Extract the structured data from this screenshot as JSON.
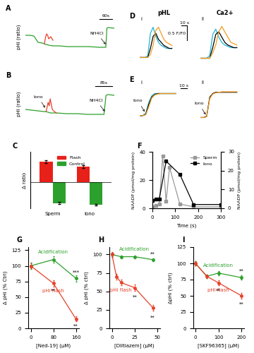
{
  "chart_data": [
    {
      "type": "line",
      "title": "A",
      "ylabel": "pHi (ratio)",
      "tick_labels": false,
      "xlim": [
        0,
        420
      ],
      "ylim": [
        0.6,
        1.25
      ],
      "series": [
        {
          "color": "#2ca02c",
          "x": [
            0,
            20,
            40,
            60,
            80,
            90,
            95,
            100,
            110,
            130,
            160,
            200,
            250,
            300,
            350,
            380,
            385,
            390,
            420
          ],
          "values": [
            0.95,
            0.95,
            0.94,
            0.85,
            0.84,
            0.83,
            0.82,
            0.82,
            0.81,
            0.8,
            0.8,
            0.79,
            0.79,
            0.79,
            0.78,
            0.78,
            1.05,
            1.06,
            1.05
          ]
        },
        {
          "color": "#e8402a",
          "x": [
            90,
            95,
            100,
            105,
            110,
            120,
            130
          ],
          "values": [
            0.83,
            0.92,
            0.97,
            0.95,
            0.9,
            0.93,
            0.88
          ]
        }
      ],
      "annotations": [
        {
          "text": "NH4Cl",
          "x": 385,
          "y": 0.8,
          "arrow": true
        }
      ],
      "scale_bar": {
        "x": 60,
        "x_label": "60s"
      }
    },
    {
      "type": "line",
      "title": "B",
      "ylabel": "pHi (ratio)",
      "tick_labels": false,
      "xlim": [
        0,
        430
      ],
      "ylim": [
        0.6,
        1.25
      ],
      "series": [
        {
          "color": "#2ca02c",
          "x": [
            0,
            30,
            60,
            90,
            100,
            110,
            120,
            150,
            200,
            250,
            300,
            350,
            380,
            390,
            400,
            430
          ],
          "values": [
            0.85,
            0.84,
            0.83,
            0.82,
            0.82,
            0.81,
            0.8,
            0.8,
            0.79,
            0.79,
            0.78,
            0.78,
            0.78,
            1.05,
            1.06,
            1.05
          ]
        },
        {
          "color": "#e8402a",
          "x": [
            100,
            110,
            115,
            120,
            130,
            140,
            150
          ],
          "values": [
            0.82,
            0.95,
            0.9,
            1.0,
            0.85,
            0.82,
            0.8
          ]
        }
      ],
      "annotations": [
        {
          "text": "Iono",
          "x": 100,
          "y": 0.85,
          "arrow": true
        },
        {
          "text": "NH4Cl",
          "x": 390,
          "y": 0.8,
          "arrow": true
        }
      ],
      "scale_bar": {
        "x": 85,
        "x_label": "85s"
      }
    },
    {
      "type": "line",
      "title": "D",
      "subtitle": "pHL",
      "tick_labels": false,
      "xlim": [
        0,
        90
      ],
      "ylim": [
        0.8,
        2.2
      ],
      "series": [
        {
          "color": "#1fb4d8",
          "x": [
            0,
            5,
            10,
            15,
            20,
            25,
            30,
            35,
            40,
            45,
            50,
            55,
            60
          ],
          "values": [
            1.0,
            1.0,
            1.0,
            1.05,
            1.8,
            2.0,
            1.7,
            1.5,
            1.4,
            1.35,
            1.3,
            1.3,
            1.3
          ]
        },
        {
          "color": "#000000",
          "x": [
            0,
            5,
            10,
            15,
            20,
            25,
            30,
            35,
            40,
            45,
            50,
            55,
            60
          ],
          "values": [
            1.0,
            1.0,
            1.0,
            1.0,
            1.3,
            1.7,
            1.8,
            1.6,
            1.5,
            1.4,
            1.35,
            1.3,
            1.3
          ]
        },
        {
          "color": "#f39c1f",
          "x": [
            0,
            5,
            10,
            15,
            20,
            25,
            30,
            35,
            40,
            45,
            50,
            55,
            60
          ],
          "values": [
            1.0,
            1.0,
            1.0,
            1.0,
            1.1,
            1.4,
            1.9,
            2.0,
            1.8,
            1.6,
            1.5,
            1.45,
            1.4
          ]
        }
      ],
      "annotations": [
        {
          "text": "i"
        }
      ],
      "scale_bar": {
        "x": 10,
        "x_label": "10 s",
        "y": 0.5,
        "y_label": "0.5 F/F0"
      }
    },
    {
      "type": "line",
      "subtitle": "Ca2+",
      "tick_labels": false,
      "xlim": [
        0,
        80
      ],
      "ylim": [
        0.8,
        2.4
      ],
      "series": [
        {
          "color": "#1fb4d8",
          "x": [
            0,
            5,
            10,
            15,
            20,
            25,
            30,
            35,
            40,
            45,
            50,
            55,
            60
          ],
          "values": [
            1.0,
            1.0,
            1.0,
            1.1,
            1.9,
            2.1,
            1.8,
            1.6,
            1.5,
            1.45,
            1.4,
            1.4,
            1.4
          ]
        },
        {
          "color": "#000000",
          "x": [
            0,
            5,
            10,
            15,
            20,
            25,
            30,
            35,
            40,
            45,
            50,
            55,
            60
          ],
          "values": [
            1.0,
            1.0,
            1.0,
            1.0,
            1.4,
            1.9,
            2.0,
            1.8,
            1.6,
            1.5,
            1.45,
            1.4,
            1.4
          ]
        },
        {
          "color": "#f39c1f",
          "x": [
            0,
            5,
            10,
            15,
            20,
            25,
            30,
            35,
            40,
            45,
            50,
            55,
            60
          ],
          "values": [
            1.0,
            1.0,
            1.0,
            1.0,
            1.2,
            1.5,
            2.0,
            2.2,
            2.0,
            1.8,
            1.6,
            1.55,
            1.5
          ]
        }
      ],
      "annotations": [
        {
          "text": "ii"
        }
      ]
    },
    {
      "type": "line",
      "title": "E",
      "tick_labels": false,
      "xlim": [
        0,
        80
      ],
      "ylim": [
        0.9,
        1.7
      ],
      "series": [
        {
          "color": "#1fb4d8",
          "x": [
            0,
            5,
            10,
            15,
            20,
            25,
            30,
            35,
            40,
            45,
            50,
            55,
            60
          ],
          "values": [
            1.0,
            1.0,
            1.05,
            1.3,
            1.45,
            1.5,
            1.5,
            1.5,
            1.5,
            1.5,
            1.5,
            1.5,
            1.5
          ]
        },
        {
          "color": "#000000",
          "x": [
            0,
            5,
            10,
            15,
            20,
            25,
            30,
            35,
            40,
            45,
            50,
            55,
            60
          ],
          "values": [
            1.0,
            1.0,
            1.03,
            1.25,
            1.42,
            1.48,
            1.5,
            1.5,
            1.5,
            1.5,
            1.5,
            1.5,
            1.5
          ]
        },
        {
          "color": "#f39c1f",
          "x": [
            0,
            5,
            10,
            15,
            20,
            25,
            30,
            35,
            40,
            45,
            50,
            55,
            60
          ],
          "values": [
            1.0,
            1.0,
            1.02,
            1.2,
            1.4,
            1.47,
            1.49,
            1.5,
            1.5,
            1.5,
            1.5,
            1.5,
            1.5
          ]
        }
      ],
      "annotations": [
        {
          "text": "i"
        },
        {
          "text": "Iono",
          "x": 10,
          "y": 1.05,
          "arrow": true
        }
      ],
      "scale_bar": {
        "x": 10,
        "x_label": "10 s"
      }
    },
    {
      "type": "line",
      "tick_labels": false,
      "xlim": [
        0,
        80
      ],
      "ylim": [
        0.9,
        2.3
      ],
      "series": [
        {
          "color": "#000000",
          "x": [
            0,
            5,
            10,
            15,
            20,
            25,
            30,
            35,
            40,
            45,
            50,
            55,
            60
          ],
          "values": [
            1.0,
            1.0,
            1.05,
            1.8,
            1.95,
            2.0,
            2.0,
            2.0,
            2.0,
            2.0,
            2.0,
            2.0,
            2.0
          ]
        },
        {
          "color": "#f39c1f",
          "x": [
            0,
            5,
            10,
            15,
            20,
            25,
            30,
            35,
            40,
            45,
            50,
            55,
            60
          ],
          "values": [
            1.0,
            1.0,
            1.03,
            1.75,
            1.93,
            1.98,
            2.0,
            2.02,
            2.02,
            2.02,
            2.02,
            2.02,
            2.02
          ]
        }
      ],
      "annotations": [
        {
          "text": "ii"
        },
        {
          "text": "Iono",
          "x": 10,
          "y": 1.05,
          "arrow": true
        }
      ]
    },
    {
      "type": "bar",
      "title": "C",
      "ylabel": "Δ ratio",
      "tick_labels": "x",
      "legend": "upper center",
      "categories": [
        "Sperm",
        "Iono"
      ],
      "ylim": [
        -0.35,
        0.4
      ],
      "series": [
        {
          "name": "Flash",
          "color": "#e8201a",
          "values": [
            0.27,
            0.2
          ],
          "errors": [
            0.02,
            0.02
          ]
        },
        {
          "name": "Control",
          "color": "#2ca02c",
          "values": [
            -0.28,
            -0.3
          ],
          "errors": [
            0.01,
            0.01
          ]
        }
      ]
    },
    {
      "type": "line",
      "title": "F",
      "xlabel": "Time (s)",
      "ylabel": "NAADP (pmol/mg protein)",
      "y2label": "NAADP (pmol/mg protein)",
      "legend": "upper right",
      "marker": "s",
      "xlim": [
        0,
        300
      ],
      "xticks": [
        0,
        100,
        200,
        300
      ],
      "ylim": [
        0,
        40
      ],
      "yticks": [
        0,
        20,
        40
      ],
      "y2lim": [
        0,
        30
      ],
      "y2ticks": [
        0,
        10,
        20,
        30
      ],
      "series": [
        {
          "name": "Sperm",
          "color": "#999999",
          "x": [
            0,
            15,
            30,
            45,
            60,
            75,
            120,
            180,
            300
          ],
          "values": [
            1,
            2,
            3,
            37,
            5,
            29,
            3,
            1,
            1
          ]
        },
        {
          "name": "Iono",
          "color": "#000000",
          "axis": "y2",
          "x": [
            0,
            15,
            30,
            60,
            120,
            180,
            300
          ],
          "values": [
            4,
            5,
            5,
            25,
            18,
            2,
            2
          ]
        }
      ]
    },
    {
      "type": "line",
      "title": "G",
      "xlabel": "[Ned-19] (μM)",
      "ylabel": "Δ pHi (% Ctrl)",
      "marker": "o",
      "xlim": [
        -10,
        170
      ],
      "xticks": [
        0,
        80,
        160
      ],
      "ylim": [
        0,
        130
      ],
      "yticks": [
        0,
        25,
        50,
        75,
        100,
        125
      ],
      "series": [
        {
          "name": "Acidification",
          "color": "#2ca02c",
          "x": [
            0,
            80,
            160
          ],
          "values": [
            100,
            110,
            80
          ],
          "errors": [
            5,
            5,
            5
          ]
        },
        {
          "name": "pHi flash",
          "color": "#e8402a",
          "x": [
            0,
            80,
            160
          ],
          "values": [
            100,
            72,
            15
          ],
          "errors": [
            4,
            5,
            4
          ]
        }
      ],
      "annotations": [
        {
          "text": "**",
          "x": 80,
          "y": 60
        },
        {
          "text": "***",
          "x": 160,
          "y": 90
        },
        {
          "text": "**",
          "x": 160,
          "y": 4
        }
      ]
    },
    {
      "type": "line",
      "title": "H",
      "xlabel": "[Diltiazem] (μM)",
      "ylabel": "Δ pHi (% ctrl)",
      "marker": "o",
      "xlim": [
        -3,
        53
      ],
      "xticks": [
        0,
        25,
        50
      ],
      "ylim": [
        0,
        110
      ],
      "yticks": [
        0,
        25,
        50,
        75,
        100
      ],
      "series": [
        {
          "name": "Acidification",
          "color": "#2ca02c",
          "x": [
            0,
            10,
            25,
            45
          ],
          "values": [
            100,
            97,
            97,
            93
          ],
          "errors": [
            2,
            2,
            2,
            2
          ]
        },
        {
          "name": "pHi flash",
          "color": "#e8402a",
          "x": [
            0,
            5,
            10,
            25,
            45
          ],
          "values": [
            100,
            70,
            62,
            55,
            28
          ],
          "errors": [
            3,
            4,
            4,
            4,
            4
          ]
        }
      ],
      "annotations": [
        {
          "text": "**",
          "x": 25,
          "y": 42
        },
        {
          "text": "**",
          "x": 45,
          "y": 15
        },
        {
          "text": "**",
          "x": 45,
          "y": 101
        }
      ]
    },
    {
      "type": "line",
      "title": "I",
      "xlabel": "[SKF96365] (μM)",
      "ylabel": "ΔpHi (% ctrl)",
      "marker": "o",
      "xlim": [
        -10,
        210
      ],
      "xticks": [
        0,
        100,
        200
      ],
      "ylim": [
        0,
        125
      ],
      "yticks": [
        0,
        25,
        50,
        75,
        100,
        125
      ],
      "series": [
        {
          "name": "Acidification",
          "color": "#2ca02c",
          "x": [
            0,
            50,
            100,
            200
          ],
          "values": [
            100,
            80,
            85,
            78
          ],
          "errors": [
            3,
            3,
            3,
            3
          ]
        },
        {
          "name": "pHi flash",
          "color": "#e8402a",
          "x": [
            0,
            50,
            100,
            200
          ],
          "values": [
            100,
            80,
            70,
            50
          ],
          "errors": [
            3,
            3,
            4,
            4
          ]
        }
      ],
      "annotations": [
        {
          "text": "**",
          "x": 100,
          "y": 58
        },
        {
          "text": "**",
          "x": 200,
          "y": 37
        },
        {
          "text": "**",
          "x": 200,
          "y": 88
        }
      ]
    }
  ]
}
